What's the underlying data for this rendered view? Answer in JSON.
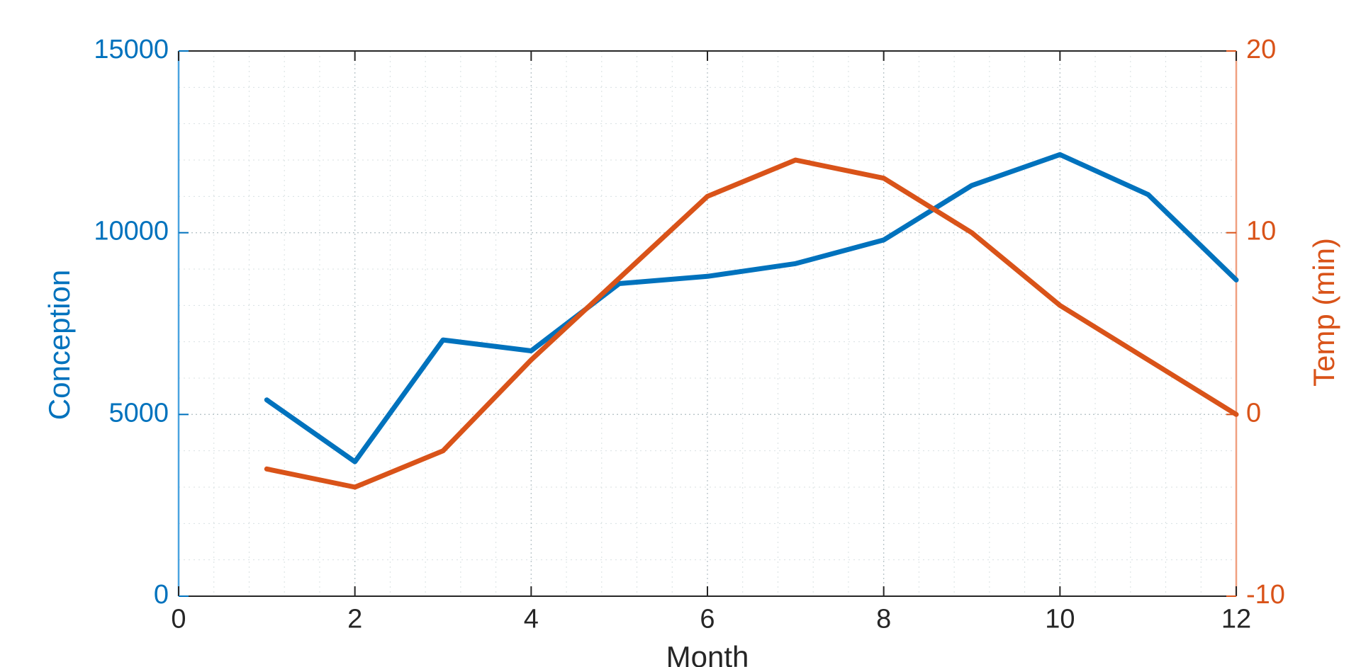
{
  "chart_data": {
    "type": "line",
    "xlabel": "Month",
    "ylabel_left": "Conception",
    "ylabel_right": "Temp (min)",
    "xlim": [
      0,
      12
    ],
    "ylim_left": [
      0,
      15000
    ],
    "ylim_right": [
      -10,
      20
    ],
    "x_ticks": [
      0,
      2,
      4,
      6,
      8,
      10,
      12
    ],
    "y_left_ticks": [
      0,
      5000,
      10000,
      15000
    ],
    "y_right_ticks": [
      -10,
      0,
      10,
      20
    ],
    "grid": "on (major and minor)",
    "legend": "none",
    "series": [
      {
        "axis": "left",
        "color": "#0072BD",
        "x": [
          1,
          2,
          3,
          4,
          5,
          6,
          7,
          8,
          9,
          10,
          11,
          12
        ],
        "values": [
          5400,
          3700,
          7050,
          6750,
          8600,
          8800,
          9150,
          9800,
          11300,
          12150,
          11050,
          8700
        ]
      },
      {
        "axis": "right",
        "color": "#D95319",
        "x": [
          1,
          2,
          3,
          4,
          5,
          6,
          7,
          8,
          9,
          10,
          11,
          12
        ],
        "values": [
          -3,
          -4,
          -2,
          3,
          7.5,
          12,
          14,
          13,
          10,
          6,
          3,
          0
        ]
      }
    ]
  }
}
